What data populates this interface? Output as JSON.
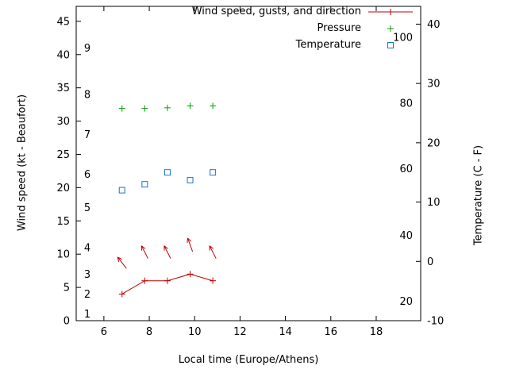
{
  "chart_data": {
    "type": "line",
    "title": "",
    "xlabel": "Local time (Europe/Athens)",
    "x_axis": {
      "range_hours": [
        4.78,
        19.96
      ],
      "ticks": [
        6,
        8,
        10,
        12,
        14,
        16,
        18
      ]
    },
    "left_axis": {
      "label": "Wind speed (kt - Beaufort)",
      "range_kt": [
        0,
        47.25
      ],
      "ticks_kt": [
        0,
        5,
        10,
        15,
        20,
        25,
        30,
        35,
        40,
        45
      ],
      "beaufort_labels": [
        {
          "label": "1",
          "kt": 1
        },
        {
          "label": "2",
          "kt": 4
        },
        {
          "label": "3",
          "kt": 7
        },
        {
          "label": "4",
          "kt": 11
        },
        {
          "label": "5",
          "kt": 17
        },
        {
          "label": "6",
          "kt": 22
        },
        {
          "label": "7",
          "kt": 28
        },
        {
          "label": "8",
          "kt": 34
        },
        {
          "label": "9",
          "kt": 41
        }
      ]
    },
    "right_axis": {
      "label": "Temperature (C - F)",
      "range_c": [
        -10,
        43
      ],
      "ticks_c": [
        -10,
        0,
        10,
        20,
        30,
        40
      ],
      "fahrenheit_labels": [
        {
          "label": "20",
          "c": -6.7
        },
        {
          "label": "40",
          "c": 4.4
        },
        {
          "label": "60",
          "c": 15.6
        },
        {
          "label": "80",
          "c": 26.7
        },
        {
          "label": "100",
          "c": 37.8
        }
      ]
    },
    "legend": [
      {
        "label": "Wind speed, gusts, and direction",
        "color": "#c00000",
        "marker": "line-plus"
      },
      {
        "label": "Pressure",
        "color": "#00a000",
        "marker": "plus"
      },
      {
        "label": "Temperature",
        "color": "#1874cd",
        "marker": "open-square"
      }
    ],
    "series": {
      "wind_speed": {
        "x_hours": [
          6.8,
          7.8,
          8.8,
          9.8,
          10.8
        ],
        "kt": [
          4,
          6,
          6,
          7,
          6
        ]
      },
      "wind_arrows": [
        {
          "x_hours": 6.8,
          "kt": 8.7,
          "angle_deg": 128
        },
        {
          "x_hours": 7.8,
          "kt": 10.3,
          "angle_deg": 117
        },
        {
          "x_hours": 8.8,
          "kt": 10.3,
          "angle_deg": 117
        },
        {
          "x_hours": 9.8,
          "kt": 11.4,
          "angle_deg": 110
        },
        {
          "x_hours": 10.8,
          "kt": 10.3,
          "angle_deg": 117
        }
      ],
      "pressure": {
        "x_hours": [
          6.8,
          7.8,
          8.8,
          9.8,
          10.8
        ],
        "y_on_kt_scale": [
          31.9,
          31.9,
          32.0,
          32.3,
          32.3
        ]
      },
      "temperature": {
        "x_hours": [
          6.8,
          7.8,
          8.8,
          9.8,
          10.8
        ],
        "c": [
          12.0,
          13.0,
          15.0,
          13.7,
          15.0
        ]
      }
    }
  }
}
